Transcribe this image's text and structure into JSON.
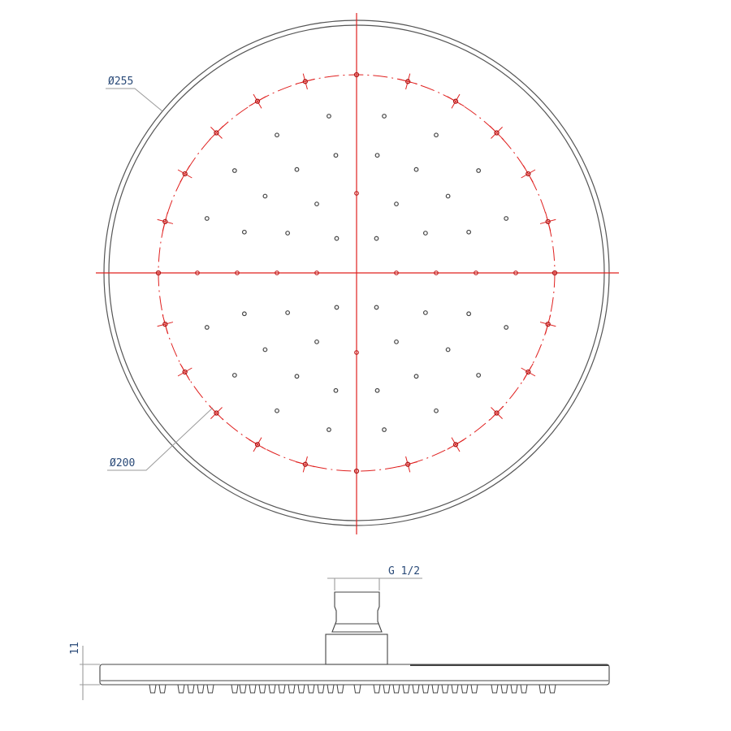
{
  "top_view": {
    "outer_diameter_label": "Ø255",
    "spray_diameter_label": "Ø200"
  },
  "side_view": {
    "thread_label": "G 1/2",
    "thickness_label": "11"
  },
  "colors": {
    "outline": "#444444",
    "centerline": "#e0201f",
    "dimension_text": "#2a4a78",
    "leader": "#9a9a9a"
  }
}
